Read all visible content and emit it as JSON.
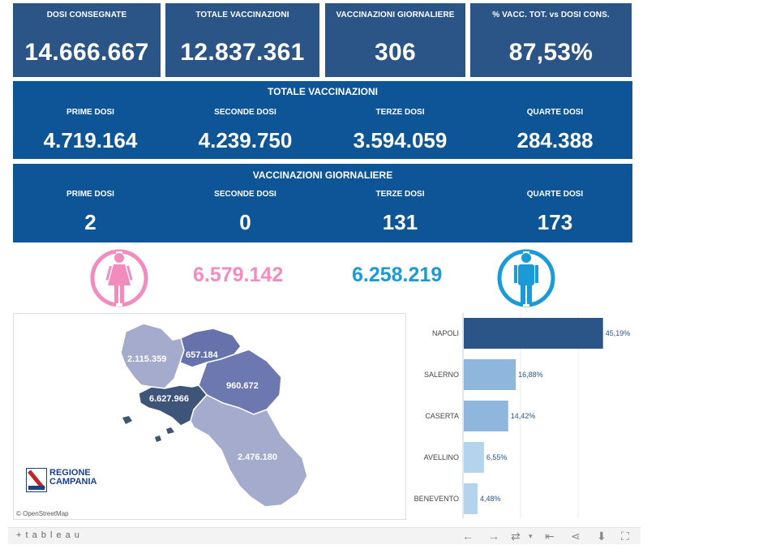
{
  "kpis": [
    {
      "label": "DOSI  CONSEGNATE",
      "value": "14.666.667"
    },
    {
      "label": "TOTALE VACCINAZIONI",
      "value": "12.837.361"
    },
    {
      "label": "VACCINAZIONI GIORNALIERE",
      "value": "306"
    },
    {
      "label": "% VACC. TOT. vs DOSI CONS.",
      "value": "87,53%"
    }
  ],
  "totale": {
    "title": "TOTALE VACCINAZIONI",
    "cols": [
      {
        "label": "PRIME DOSI",
        "value": "4.719.164"
      },
      {
        "label": "SECONDE DOSI",
        "value": "4.239.750"
      },
      {
        "label": "TERZE DOSI",
        "value": "3.594.059"
      },
      {
        "label": "QUARTE DOSI",
        "value": "284.388"
      }
    ]
  },
  "giornaliere": {
    "title": "VACCINAZIONI GIORNALIERE",
    "cols": [
      {
        "label": "PRIME DOSI",
        "value": "2"
      },
      {
        "label": "SECONDE DOSI",
        "value": "0"
      },
      {
        "label": "TERZE DOSI",
        "value": "131"
      },
      {
        "label": "QUARTE DOSI",
        "value": "173"
      }
    ]
  },
  "gender": {
    "female_value": "6.579.142",
    "male_value": "6.258.219",
    "female_color": "#f28cbf",
    "male_color": "#1a9ad6"
  },
  "map": {
    "labels": {
      "caserta": "657.184",
      "benevento_avellino": "960.672",
      "napoli": "6.627.966",
      "salerno": "2.476.180",
      "north": "2.115.359"
    },
    "logo_line1": "REGIONE",
    "logo_line2": "CAMPANIA",
    "attribution": "© OpenStreetMap"
  },
  "chart_data": {
    "type": "bar",
    "categories": [
      "NAPOLI",
      "SALERNO",
      "CASERTA",
      "AVELLINO",
      "BENEVENTO"
    ],
    "values": [
      45.19,
      16.88,
      14.42,
      6.55,
      4.48
    ],
    "labels": [
      "45,19%",
      "16,88%",
      "14,42%",
      "6,55%",
      "4,48%"
    ],
    "colors": [
      "#2b5587",
      "#8fb7dd",
      "#8fb7dd",
      "#b4d4ee",
      "#b4d4ee"
    ],
    "xlim": [
      0,
      50
    ]
  },
  "footer": {
    "brand": "+ t a b l e a u"
  },
  "icons": [
    "female-icon",
    "male-icon",
    "back-icon",
    "forward-icon",
    "revert-icon",
    "reset-icon",
    "share-icon",
    "download-icon",
    "fullscreen-icon"
  ]
}
